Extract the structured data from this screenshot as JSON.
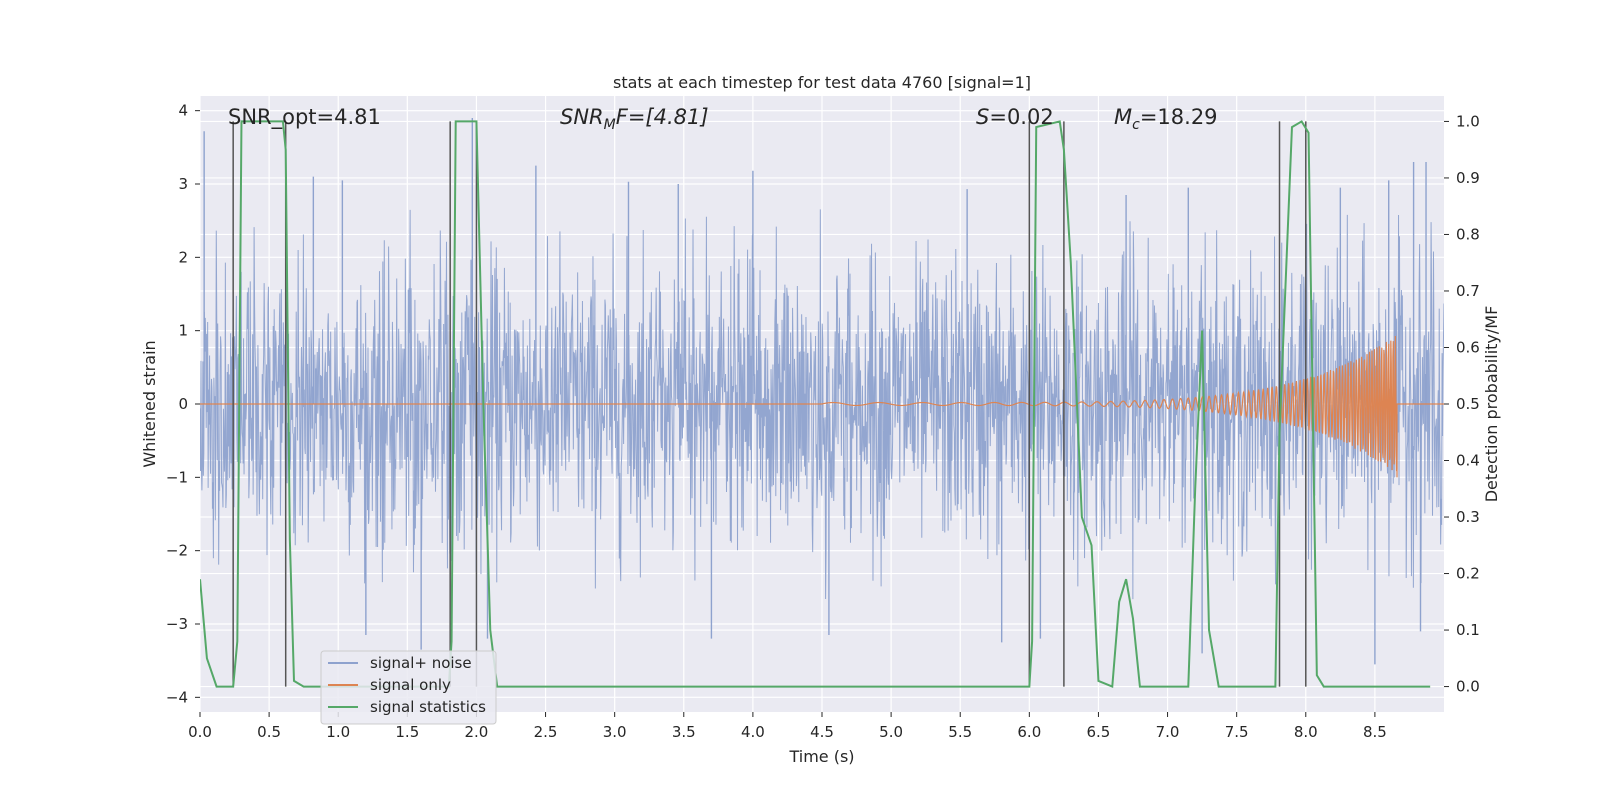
{
  "chart_data": {
    "type": "line",
    "title": "stats at each timestep for test data 4760 [signal=1]",
    "xlabel": "Time (s)",
    "ylabel": "Whitened strain",
    "y2label": "Detection probability/MF",
    "xlim": [
      0.0,
      9.0
    ],
    "ylim": [
      -4.2,
      4.2
    ],
    "y2lim": [
      -0.045,
      1.045
    ],
    "grid": true,
    "legend_position": "lower-left",
    "x_ticks": [
      "0.0",
      "0.5",
      "1.0",
      "1.5",
      "2.0",
      "2.5",
      "3.0",
      "3.5",
      "4.0",
      "4.5",
      "5.0",
      "5.5",
      "6.0",
      "6.5",
      "7.0",
      "7.5",
      "8.0",
      "8.5"
    ],
    "y_ticks": [
      "−4",
      "−3",
      "−2",
      "−1",
      "0",
      "1",
      "2",
      "3",
      "4"
    ],
    "y2_ticks": [
      "0.0",
      "0.1",
      "0.2",
      "0.3",
      "0.4",
      "0.5",
      "0.6",
      "0.7",
      "0.8",
      "0.9",
      "1.0"
    ],
    "annotations": {
      "snr_opt": "SNR_opt=4.81",
      "snr_mf_main": "SNR",
      "snr_mf_sub": "M",
      "snr_mf_tail": "F=[4.81]",
      "s_var": "S",
      "s_tail": "=0.02",
      "mc_main": "M",
      "mc_sub": "c",
      "mc_tail": "=18.29"
    },
    "vertical_lines_x": [
      0.24,
      0.62,
      1.81,
      2.0,
      6.0,
      6.25,
      7.81,
      8.0
    ],
    "series": [
      {
        "name": "signal+ noise",
        "color": "#8ea2ce",
        "kind": "noise",
        "amplitude_envelope": [
          1.5,
          2.2
        ],
        "peak_values": [
          [
            0.03,
            3.72
          ],
          [
            0.62,
            3.4
          ],
          [
            0.82,
            3.1
          ],
          [
            1.03,
            3.05
          ],
          [
            1.97,
            3.9
          ],
          [
            2.43,
            3.25
          ],
          [
            3.1,
            3.03
          ],
          [
            3.46,
            3.0
          ],
          [
            4.0,
            3.18
          ],
          [
            5.55,
            2.93
          ],
          [
            6.7,
            2.85
          ],
          [
            7.15,
            2.95
          ],
          [
            8.25,
            2.95
          ],
          [
            8.6,
            3.05
          ],
          [
            8.78,
            3.3
          ],
          [
            8.87,
            3.3
          ],
          [
            1.2,
            -3.15
          ],
          [
            1.6,
            -3.35
          ],
          [
            2.08,
            -3.2
          ],
          [
            3.7,
            -3.2
          ],
          [
            4.55,
            -3.15
          ],
          [
            5.8,
            -3.25
          ],
          [
            6.08,
            -3.2
          ],
          [
            7.25,
            -3.4
          ],
          [
            8.5,
            -3.55
          ],
          [
            8.83,
            -3.1
          ]
        ]
      },
      {
        "name": "signal only",
        "color": "#dd8452",
        "kind": "chirp",
        "start": 4.5,
        "end": 8.66,
        "peak_amplitude": 0.95
      },
      {
        "name": "signal statistics",
        "color": "#55a868",
        "kind": "line",
        "axis": "right",
        "x": [
          0.0,
          0.05,
          0.12,
          0.18,
          0.24,
          0.27,
          0.3,
          0.33,
          0.6,
          0.62,
          0.65,
          0.68,
          0.75,
          0.8,
          1.8,
          1.82,
          1.85,
          1.88,
          2.0,
          2.05,
          2.1,
          2.15,
          2.2,
          5.6,
          5.95,
          6.0,
          6.02,
          6.05,
          6.22,
          6.25,
          6.3,
          6.38,
          6.45,
          6.5,
          6.6,
          6.65,
          6.7,
          6.75,
          6.8,
          7.0,
          7.15,
          7.2,
          7.25,
          7.3,
          7.37,
          7.5,
          7.7,
          7.78,
          7.81,
          7.9,
          7.97,
          8.02,
          8.08,
          8.13,
          8.9
        ],
        "y": [
          0.19,
          0.05,
          0.0,
          0.0,
          0.0,
          0.08,
          1.0,
          1.0,
          1.0,
          0.95,
          0.26,
          0.01,
          0.0,
          0.0,
          0.0,
          0.08,
          1.0,
          1.0,
          1.0,
          0.5,
          0.1,
          0.0,
          0.0,
          0.0,
          0.0,
          0.0,
          0.08,
          0.99,
          1.0,
          0.95,
          0.75,
          0.3,
          0.25,
          0.01,
          0.0,
          0.15,
          0.19,
          0.12,
          0.0,
          0.0,
          0.0,
          0.35,
          0.63,
          0.1,
          0.0,
          0.0,
          0.0,
          0.0,
          0.45,
          0.99,
          1.0,
          0.98,
          0.02,
          0.0,
          0.0
        ]
      }
    ]
  },
  "legend": [
    {
      "label": "signal+ noise",
      "color": "#8ea2ce"
    },
    {
      "label": "signal only",
      "color": "#dd8452"
    },
    {
      "label": "signal statistics",
      "color": "#55a868"
    }
  ]
}
